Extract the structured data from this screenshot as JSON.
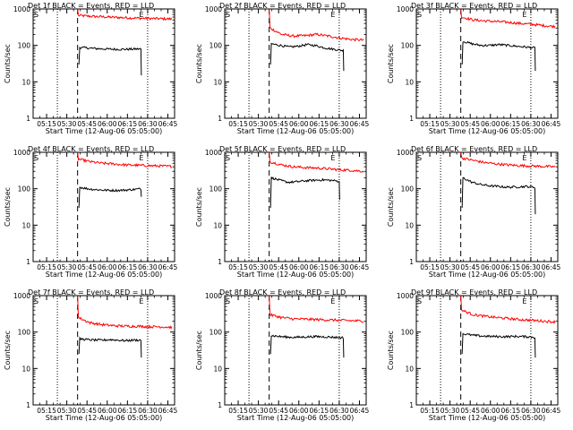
{
  "chart_data": [
    {
      "type": "line",
      "title": "Det 1f BLACK = Events, RED = LLD",
      "xlabel": "Start Time (12-Aug-06 05:05:00)",
      "ylabel": "Counts/sec",
      "yscale": "log",
      "ylim": [
        1,
        1000
      ],
      "x_ticks": [
        "05:15",
        "05:30",
        "05:45",
        "06:00",
        "06:15",
        "06:30",
        "06:45"
      ],
      "y_ticks": [
        "1",
        "10",
        "100",
        "1000"
      ],
      "dotted_lines": [
        "05:23",
        "06:30"
      ],
      "dashed_lines": [
        "05:38"
      ],
      "markers": [
        {
          "label": "S",
          "at": "05:05"
        },
        {
          "label": "E",
          "at": "06:23"
        }
      ],
      "series": [
        {
          "color": "#ff0000",
          "start": "05:38",
          "end": "06:48",
          "start_value": 1000,
          "values": [
            660,
            630,
            610,
            590,
            575,
            560,
            550,
            540,
            530
          ]
        },
        {
          "color": "#000000",
          "start": "05:39",
          "end": "06:25",
          "start_value": 30,
          "values": [
            88,
            85,
            82,
            80,
            79,
            78,
            78,
            79,
            80
          ],
          "end_value": 15
        }
      ]
    },
    {
      "type": "line",
      "title": "Det 2f BLACK = Events, RED = LLD",
      "xlabel": "Start Time (12-Aug-06 05:05:00)",
      "ylabel": "Counts/sec",
      "yscale": "log",
      "ylim": [
        1,
        1000
      ],
      "x_ticks": [
        "05:15",
        "05:30",
        "05:45",
        "06:00",
        "06:15",
        "06:30",
        "06:45"
      ],
      "y_ticks": [
        "1",
        "10",
        "100",
        "1000"
      ],
      "dotted_lines": [
        "05:23",
        "06:30"
      ],
      "dashed_lines": [
        "05:38"
      ],
      "markers": [
        {
          "label": "S",
          "at": "05:05"
        },
        {
          "label": "E",
          "at": "06:23"
        }
      ],
      "series": [
        {
          "color": "#ff0000",
          "start": "05:38",
          "end": "06:48",
          "start_value": 1000,
          "values": [
            300,
            200,
            180,
            185,
            200,
            180,
            160,
            145,
            140
          ]
        },
        {
          "color": "#000000",
          "start": "05:39",
          "end": "06:33",
          "start_value": 30,
          "values": [
            110,
            100,
            90,
            95,
            105,
            98,
            85,
            78,
            72
          ],
          "end_value": 20
        }
      ]
    },
    {
      "type": "line",
      "title": "Det 3f BLACK = Events, RED = LLD",
      "xlabel": "Start Time (12-Aug-06 05:05:00)",
      "ylabel": "Counts/sec",
      "yscale": "log",
      "ylim": [
        1,
        1000
      ],
      "x_ticks": [
        "05:15",
        "05:30",
        "05:45",
        "06:00",
        "06:15",
        "06:30",
        "06:45"
      ],
      "y_ticks": [
        "1",
        "10",
        "100",
        "1000"
      ],
      "dotted_lines": [
        "05:23",
        "06:30"
      ],
      "dashed_lines": [
        "05:38"
      ],
      "markers": [
        {
          "label": "S",
          "at": "05:05"
        },
        {
          "label": "E",
          "at": "06:23"
        }
      ],
      "series": [
        {
          "color": "#ff0000",
          "start": "05:38",
          "end": "06:48",
          "start_value": 1000,
          "values": [
            600,
            500,
            470,
            450,
            430,
            400,
            380,
            350,
            330
          ]
        },
        {
          "color": "#000000",
          "start": "05:39",
          "end": "06:33",
          "start_value": 30,
          "values": [
            130,
            110,
            100,
            100,
            105,
            100,
            95,
            90,
            85
          ],
          "end_value": 20
        }
      ]
    },
    {
      "type": "line",
      "title": "Det 4f BLACK = Events, RED = LLD",
      "xlabel": "Start Time (12-Aug-06 05:05:00)",
      "ylabel": "Counts/sec",
      "yscale": "log",
      "ylim": [
        1,
        1000
      ],
      "x_ticks": [
        "05:15",
        "05:30",
        "05:45",
        "06:00",
        "06:15",
        "06:30",
        "06:45"
      ],
      "y_ticks": [
        "1",
        "10",
        "100",
        "1000"
      ],
      "dotted_lines": [
        "05:23",
        "06:30"
      ],
      "dashed_lines": [
        "05:38"
      ],
      "markers": [
        {
          "label": "S",
          "at": "05:05"
        },
        {
          "label": "E",
          "at": "06:23"
        }
      ],
      "series": [
        {
          "color": "#ff0000",
          "start": "05:38",
          "end": "06:48",
          "start_value": 1000,
          "values": [
            650,
            550,
            500,
            480,
            450,
            440,
            430,
            420,
            410
          ]
        },
        {
          "color": "#000000",
          "start": "05:39",
          "end": "06:25",
          "start_value": 30,
          "values": [
            110,
            100,
            95,
            92,
            90,
            90,
            92,
            95,
            100
          ],
          "end_value": 60
        }
      ]
    },
    {
      "type": "line",
      "title": "Det 5f BLACK = Events, RED = LLD",
      "xlabel": "Start Time (12-Aug-06 05:05:00)",
      "ylabel": "Counts/sec",
      "yscale": "log",
      "ylim": [
        1,
        1000
      ],
      "x_ticks": [
        "05:15",
        "05:30",
        "05:45",
        "06:00",
        "06:15",
        "06:30",
        "06:45"
      ],
      "y_ticks": [
        "1",
        "10",
        "100",
        "1000"
      ],
      "dotted_lines": [
        "05:23",
        "06:30"
      ],
      "dashed_lines": [
        "05:38"
      ],
      "markers": [
        {
          "label": "S",
          "at": "05:05"
        },
        {
          "label": "E",
          "at": "06:23"
        }
      ],
      "series": [
        {
          "color": "#ff0000",
          "start": "05:38",
          "end": "06:48",
          "start_value": 1000,
          "values": [
            550,
            450,
            400,
            380,
            370,
            350,
            330,
            320,
            300
          ]
        },
        {
          "color": "#000000",
          "start": "05:39",
          "end": "06:30",
          "start_value": 30,
          "values": [
            200,
            170,
            150,
            155,
            165,
            170,
            175,
            170,
            160
          ],
          "end_value": 50
        }
      ]
    },
    {
      "type": "line",
      "title": "Det 6f BLACK = Events, RED = LLD",
      "xlabel": "Start Time (12-Aug-06 05:05:00)",
      "ylabel": "Counts/sec",
      "yscale": "log",
      "ylim": [
        1,
        1000
      ],
      "x_ticks": [
        "05:15",
        "05:30",
        "05:45",
        "06:00",
        "06:15",
        "06:30",
        "06:45"
      ],
      "y_ticks": [
        "1",
        "10",
        "100",
        "1000"
      ],
      "dotted_lines": [
        "05:23",
        "06:30"
      ],
      "dashed_lines": [
        "05:38"
      ],
      "markers": [
        {
          "label": "S",
          "at": "05:05"
        },
        {
          "label": "E",
          "at": "06:23"
        }
      ],
      "series": [
        {
          "color": "#ff0000",
          "start": "05:38",
          "end": "06:48",
          "start_value": 1000,
          "values": [
            700,
            600,
            520,
            480,
            450,
            430,
            420,
            410,
            400
          ]
        },
        {
          "color": "#000000",
          "start": "05:39",
          "end": "06:33",
          "start_value": 30,
          "values": [
            200,
            150,
            130,
            120,
            115,
            110,
            112,
            115,
            110
          ],
          "end_value": 20
        }
      ]
    },
    {
      "type": "line",
      "title": "Det 7f BLACK = Events, RED = LLD",
      "xlabel": "Start Time (12-Aug-06 05:05:00)",
      "ylabel": "Counts/sec",
      "yscale": "log",
      "ylim": [
        1,
        1000
      ],
      "x_ticks": [
        "05:15",
        "05:30",
        "05:45",
        "06:00",
        "06:15",
        "06:30",
        "06:45"
      ],
      "y_ticks": [
        "1",
        "10",
        "100",
        "1000"
      ],
      "dotted_lines": [
        "05:23",
        "06:30"
      ],
      "dashed_lines": [
        "05:38"
      ],
      "markers": [
        {
          "label": "S",
          "at": "05:05"
        },
        {
          "label": "E",
          "at": "06:23"
        }
      ],
      "series": [
        {
          "color": "#ff0000",
          "start": "05:38",
          "end": "06:48",
          "start_value": 1000,
          "values": [
            250,
            180,
            160,
            150,
            145,
            145,
            140,
            140,
            135
          ]
        },
        {
          "color": "#000000",
          "start": "05:39",
          "end": "06:25",
          "start_value": 25,
          "values": [
            65,
            62,
            60,
            60,
            62,
            60,
            58,
            60,
            60
          ],
          "end_value": 20
        }
      ]
    },
    {
      "type": "line",
      "title": "Det 8f BLACK = Events, RED = LLD",
      "xlabel": "Start Time (12-Aug-06 05:05:00)",
      "ylabel": "Counts/sec",
      "yscale": "log",
      "ylim": [
        1,
        1000
      ],
      "x_ticks": [
        "05:15",
        "05:30",
        "05:45",
        "06:00",
        "06:15",
        "06:30",
        "06:45"
      ],
      "y_ticks": [
        "1",
        "10",
        "100",
        "1000"
      ],
      "dotted_lines": [
        "05:23",
        "06:30"
      ],
      "dashed_lines": [
        "05:38"
      ],
      "markers": [
        {
          "label": "S",
          "at": "05:05"
        },
        {
          "label": "E",
          "at": "06:23"
        }
      ],
      "series": [
        {
          "color": "#ff0000",
          "start": "05:38",
          "end": "06:48",
          "start_value": 1000,
          "values": [
            300,
            250,
            230,
            225,
            220,
            215,
            210,
            205,
            200
          ]
        },
        {
          "color": "#000000",
          "start": "05:39",
          "end": "06:33",
          "start_value": 25,
          "values": [
            80,
            75,
            72,
            72,
            74,
            75,
            74,
            72,
            70
          ],
          "end_value": 20
        }
      ]
    },
    {
      "type": "line",
      "title": "Det 9f BLACK = Events, RED = LLD",
      "xlabel": "Start Time (12-Aug-06 05:05:00)",
      "ylabel": "Counts/sec",
      "yscale": "log",
      "ylim": [
        1,
        1000
      ],
      "x_ticks": [
        "05:15",
        "05:30",
        "05:45",
        "06:00",
        "06:15",
        "06:30",
        "06:45"
      ],
      "y_ticks": [
        "1",
        "10",
        "100",
        "1000"
      ],
      "dotted_lines": [
        "05:23",
        "06:30"
      ],
      "dashed_lines": [
        "05:38"
      ],
      "markers": [
        {
          "label": "S",
          "at": "05:05"
        },
        {
          "label": "E",
          "at": "06:23"
        }
      ],
      "series": [
        {
          "color": "#ff0000",
          "start": "05:38",
          "end": "06:48",
          "start_value": 1000,
          "values": [
            400,
            300,
            270,
            250,
            235,
            220,
            210,
            200,
            190
          ]
        },
        {
          "color": "#000000",
          "start": "05:39",
          "end": "06:33",
          "start_value": 25,
          "values": [
            90,
            82,
            78,
            76,
            75,
            75,
            76,
            75,
            72
          ],
          "end_value": 20
        }
      ]
    }
  ]
}
